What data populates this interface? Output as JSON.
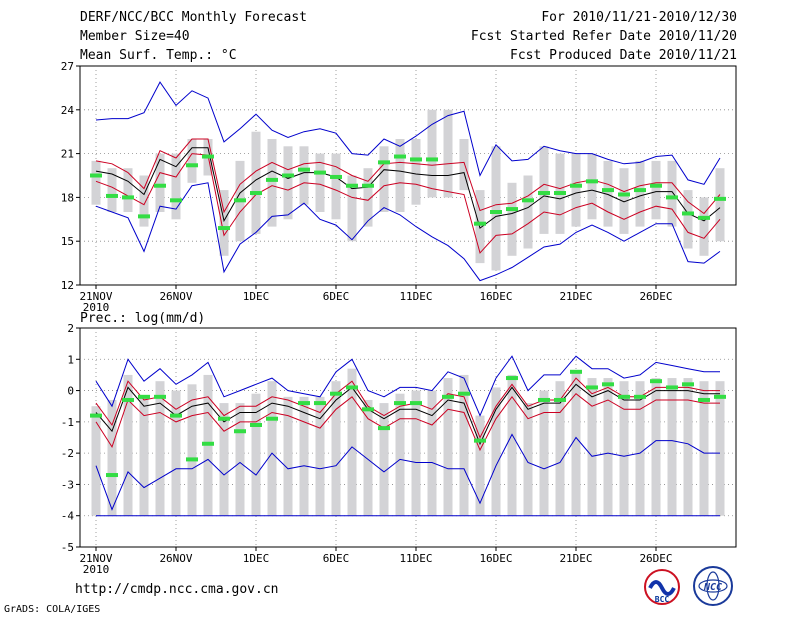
{
  "header": {
    "title": "DERF/NCC/BCC Monthly Forecast",
    "member_size": "Member Size=40",
    "variable": "Mean Surf. Temp.: °C",
    "forecast_range": "For 2010/11/21-2010/12/30",
    "started_refer": "Fcst Started Refer Date 2010/11/20",
    "produced": "Fcst Produced Date 2010/11/21"
  },
  "footer": {
    "url": "http://cmdp.ncc.cma.gov.cn",
    "grads": "GrADS: COLA/IGES",
    "logo_bcc": "BCC",
    "logo_ncc": "NCC"
  },
  "colors": {
    "box": "#d3d3d6",
    "obs": "#33dd44",
    "max_min": "#0000cc",
    "spread": "#cc0022",
    "mean": "#000000",
    "grid": "#888888"
  },
  "chart_data": [
    {
      "type": "line",
      "title": "Mean Surf. Temp.: °C",
      "x_tick_labels": [
        "21NOV",
        "26NOV",
        "1DEC",
        "6DEC",
        "11DEC",
        "16DEC",
        "21DEC",
        "26DEC"
      ],
      "x_tick_days": [
        1,
        6,
        11,
        16,
        21,
        26,
        31,
        36
      ],
      "x_year_label": "2010",
      "ylim": [
        12,
        27
      ],
      "y_ticks": [
        12,
        15,
        18,
        21,
        24,
        27
      ],
      "grid": true,
      "days": [
        1,
        2,
        3,
        4,
        5,
        6,
        7,
        8,
        9,
        10,
        11,
        12,
        13,
        14,
        15,
        16,
        17,
        18,
        19,
        20,
        21,
        22,
        23,
        24,
        25,
        26,
        27,
        28,
        29,
        30,
        31,
        32,
        33,
        34,
        35,
        36,
        37,
        38,
        39,
        40
      ],
      "series": [
        {
          "name": "max",
          "values": [
            23.3,
            23.4,
            23.4,
            23.8,
            25.9,
            24.3,
            25.3,
            24.8,
            21.8,
            22.7,
            23.7,
            22.6,
            22.1,
            22.5,
            22.7,
            22.4,
            21.0,
            20.9,
            22.0,
            21.5,
            22.2,
            23.0,
            23.6,
            23.9,
            19.5,
            21.6,
            20.5,
            20.6,
            21.5,
            21.2,
            21.0,
            21.0,
            20.6,
            20.3,
            20.4,
            20.8,
            20.9,
            19.2,
            18.9,
            20.7
          ]
        },
        {
          "name": "spread_high",
          "values": [
            20.5,
            20.3,
            19.7,
            18.6,
            21.2,
            20.7,
            22.0,
            22.0,
            17.0,
            18.9,
            19.8,
            20.4,
            19.9,
            20.3,
            20.4,
            20.1,
            19.5,
            19.1,
            20.3,
            20.4,
            20.3,
            20.2,
            20.3,
            20.4,
            17.1,
            17.5,
            17.6,
            18.1,
            18.9,
            18.6,
            19.0,
            19.2,
            18.9,
            18.4,
            18.8,
            19.0,
            19.0,
            17.7,
            16.9,
            18.2
          ]
        },
        {
          "name": "mean",
          "values": [
            19.8,
            19.6,
            19.1,
            18.2,
            20.6,
            20.1,
            21.4,
            21.4,
            16.4,
            18.3,
            19.2,
            19.8,
            19.3,
            19.7,
            19.7,
            19.4,
            18.6,
            18.7,
            19.9,
            19.8,
            19.6,
            19.5,
            19.5,
            19.7,
            15.9,
            16.7,
            16.9,
            17.3,
            18.1,
            17.9,
            18.3,
            18.5,
            18.2,
            17.7,
            18.1,
            18.4,
            18.4,
            16.9,
            16.4,
            17.3
          ]
        },
        {
          "name": "spread_low",
          "values": [
            19.1,
            18.7,
            18.1,
            17.5,
            19.7,
            19.4,
            21.0,
            20.9,
            15.4,
            17.0,
            18.2,
            18.8,
            18.5,
            19.0,
            18.9,
            18.5,
            18.0,
            17.8,
            18.8,
            19.0,
            18.9,
            18.6,
            18.4,
            18.2,
            14.2,
            15.4,
            15.5,
            16.2,
            17.0,
            16.8,
            17.3,
            17.6,
            17.0,
            16.5,
            17.0,
            17.4,
            17.2,
            15.6,
            15.2,
            16.5
          ]
        },
        {
          "name": "min",
          "values": [
            17.4,
            17.0,
            16.6,
            14.3,
            17.4,
            17.2,
            18.8,
            19.0,
            12.9,
            14.8,
            15.6,
            16.7,
            16.8,
            17.6,
            16.5,
            16.1,
            15.1,
            16.4,
            17.3,
            16.8,
            16.0,
            15.3,
            14.7,
            13.8,
            12.3,
            12.7,
            13.2,
            13.9,
            14.6,
            14.8,
            15.6,
            16.1,
            15.6,
            15.0,
            15.6,
            16.2,
            16.2,
            13.6,
            13.5,
            14.3
          ]
        }
      ],
      "boxes": {
        "low": [
          17.5,
          17.0,
          17.0,
          16.0,
          17.0,
          16.5,
          19.0,
          19.5,
          14.0,
          15.0,
          15.5,
          16.0,
          16.5,
          17.5,
          17.0,
          16.5,
          15.0,
          16.0,
          17.0,
          17.0,
          17.5,
          18.0,
          18.0,
          18.5,
          13.5,
          13.0,
          14.0,
          14.5,
          15.5,
          15.5,
          16.0,
          16.5,
          16.0,
          15.5,
          16.0,
          16.5,
          16.0,
          14.5,
          14.0,
          15.0
        ],
        "high": [
          20.5,
          20.0,
          20.0,
          19.5,
          21.0,
          21.0,
          22.0,
          22.0,
          18.5,
          20.5,
          22.5,
          22.0,
          21.5,
          21.5,
          21.0,
          21.0,
          19.5,
          20.0,
          21.5,
          22.0,
          22.0,
          24.0,
          24.0,
          22.0,
          18.5,
          21.5,
          19.0,
          19.5,
          21.5,
          21.0,
          21.0,
          21.0,
          20.5,
          20.0,
          20.5,
          20.5,
          20.5,
          18.5,
          18.0,
          20.0
        ]
      },
      "observed": [
        19.5,
        18.1,
        18.0,
        16.7,
        18.8,
        17.8,
        20.2,
        20.8,
        15.9,
        17.8,
        18.3,
        19.2,
        19.5,
        19.9,
        19.7,
        19.4,
        18.8,
        18.8,
        20.4,
        20.8,
        20.6,
        20.6,
        null,
        null,
        16.2,
        17.0,
        17.2,
        17.8,
        18.3,
        18.3,
        18.8,
        19.1,
        18.5,
        18.2,
        18.5,
        18.8,
        18.0,
        16.9,
        16.6,
        17.9
      ]
    },
    {
      "type": "line",
      "title": "Prec.: log(mm/d)",
      "x_tick_labels": [
        "21NOV",
        "26NOV",
        "1DEC",
        "6DEC",
        "11DEC",
        "16DEC",
        "21DEC",
        "26DEC"
      ],
      "x_tick_days": [
        1,
        6,
        11,
        16,
        21,
        26,
        31,
        36
      ],
      "x_year_label": "2010",
      "ylim": [
        -5,
        2
      ],
      "y_ticks": [
        -5,
        -4,
        -3,
        -2,
        -1,
        0,
        1,
        2
      ],
      "grid": true,
      "days": [
        1,
        2,
        3,
        4,
        5,
        6,
        7,
        8,
        9,
        10,
        11,
        12,
        13,
        14,
        15,
        16,
        17,
        18,
        19,
        20,
        21,
        22,
        23,
        24,
        25,
        26,
        27,
        28,
        29,
        30,
        31,
        32,
        33,
        34,
        35,
        36,
        37,
        38,
        39,
        40
      ],
      "series": [
        {
          "name": "max",
          "values": [
            0.3,
            -0.5,
            1.0,
            0.3,
            0.7,
            0.2,
            0.5,
            0.9,
            -0.2,
            0.0,
            0.2,
            0.4,
            0.0,
            -0.1,
            -0.2,
            0.6,
            1.0,
            0.0,
            -0.2,
            0.1,
            0.1,
            0.0,
            0.6,
            0.4,
            -0.8,
            0.4,
            1.1,
            0.0,
            0.5,
            0.5,
            1.1,
            0.7,
            0.7,
            0.4,
            0.5,
            0.9,
            0.8,
            0.7,
            0.6,
            0.6
          ]
        },
        {
          "name": "spread_high",
          "values": [
            -0.4,
            -1.1,
            0.3,
            -0.3,
            -0.2,
            -0.6,
            -0.3,
            -0.2,
            -0.8,
            -0.5,
            -0.5,
            -0.2,
            -0.3,
            -0.5,
            -0.7,
            -0.1,
            0.3,
            -0.5,
            -0.8,
            -0.5,
            -0.4,
            -0.6,
            -0.1,
            -0.2,
            -1.5,
            -0.5,
            0.2,
            -0.5,
            -0.3,
            -0.3,
            0.4,
            -0.1,
            0.1,
            -0.2,
            -0.2,
            0.1,
            0.1,
            0.1,
            0.0,
            0.0
          ]
        },
        {
          "name": "mean",
          "values": [
            -0.7,
            -1.3,
            0.1,
            -0.5,
            -0.4,
            -0.8,
            -0.5,
            -0.4,
            -1.0,
            -0.7,
            -0.7,
            -0.4,
            -0.5,
            -0.7,
            -0.9,
            -0.3,
            0.1,
            -0.6,
            -0.9,
            -0.6,
            -0.6,
            -0.8,
            -0.3,
            -0.4,
            -1.7,
            -0.6,
            0.1,
            -0.6,
            -0.4,
            -0.4,
            0.2,
            -0.2,
            0.0,
            -0.3,
            -0.3,
            0.0,
            0.0,
            0.0,
            -0.1,
            -0.1
          ]
        },
        {
          "name": "spread_low",
          "values": [
            -1.0,
            -1.8,
            -0.3,
            -0.8,
            -0.7,
            -1.0,
            -0.8,
            -0.7,
            -1.3,
            -1.0,
            -1.0,
            -0.7,
            -0.8,
            -1.0,
            -1.2,
            -0.6,
            -0.2,
            -0.9,
            -1.2,
            -0.9,
            -0.9,
            -1.1,
            -0.6,
            -0.7,
            -1.9,
            -0.9,
            -0.2,
            -0.9,
            -0.7,
            -0.7,
            -0.1,
            -0.5,
            -0.3,
            -0.6,
            -0.6,
            -0.3,
            -0.3,
            -0.3,
            -0.4,
            -0.4
          ]
        },
        {
          "name": "min",
          "values": [
            -2.4,
            -3.8,
            -2.6,
            -3.1,
            -2.8,
            -2.5,
            -2.5,
            -2.2,
            -2.7,
            -2.3,
            -2.7,
            -2.0,
            -2.5,
            -2.4,
            -2.5,
            -2.4,
            -1.8,
            -2.2,
            -2.6,
            -2.2,
            -2.3,
            -2.3,
            -2.5,
            -2.5,
            -3.6,
            -2.4,
            -1.4,
            -2.3,
            -2.5,
            -2.3,
            -1.5,
            -2.1,
            -2.0,
            -2.1,
            -2.0,
            -1.6,
            -1.6,
            -1.7,
            -2.0,
            -2.0
          ]
        }
      ],
      "boxes": {
        "low": [
          -4.0,
          -4.0,
          -4.0,
          -4.0,
          -4.0,
          -4.0,
          -4.0,
          -4.0,
          -4.0,
          -4.0,
          -4.0,
          -4.0,
          -4.0,
          -4.0,
          -4.0,
          -4.0,
          -4.0,
          -4.0,
          -4.0,
          -4.0,
          -4.0,
          -4.0,
          -4.0,
          -4.0,
          -4.0,
          -4.0,
          -4.0,
          -4.0,
          -4.0,
          -4.0,
          -4.0,
          -4.0,
          -4.0,
          -4.0,
          -4.0,
          -4.0,
          -4.0,
          -4.0,
          -4.0,
          -4.0
        ],
        "high": [
          -0.5,
          -0.3,
          0.5,
          -0.2,
          0.3,
          0.0,
          0.2,
          0.5,
          -0.4,
          -0.4,
          -0.1,
          0.3,
          -0.2,
          -0.2,
          -0.2,
          0.3,
          0.7,
          -0.3,
          -0.4,
          -0.1,
          0.0,
          0.0,
          0.4,
          0.5,
          -0.8,
          0.1,
          0.5,
          -0.4,
          0.0,
          0.3,
          0.6,
          0.4,
          0.4,
          0.3,
          0.3,
          0.4,
          0.4,
          0.4,
          0.3,
          0.3
        ]
      },
      "observed": [
        -0.8,
        -2.7,
        -0.3,
        -0.2,
        -0.2,
        -0.8,
        -2.2,
        -1.7,
        -0.9,
        -1.3,
        -1.1,
        -0.9,
        null,
        -0.4,
        -0.4,
        -0.1,
        0.1,
        -0.6,
        -1.2,
        -0.4,
        -0.4,
        null,
        -0.2,
        -0.1,
        -1.6,
        null,
        0.4,
        null,
        -0.3,
        -0.3,
        0.6,
        0.1,
        0.2,
        -0.2,
        -0.2,
        0.3,
        0.1,
        0.2,
        -0.3,
        -0.2
      ]
    }
  ]
}
